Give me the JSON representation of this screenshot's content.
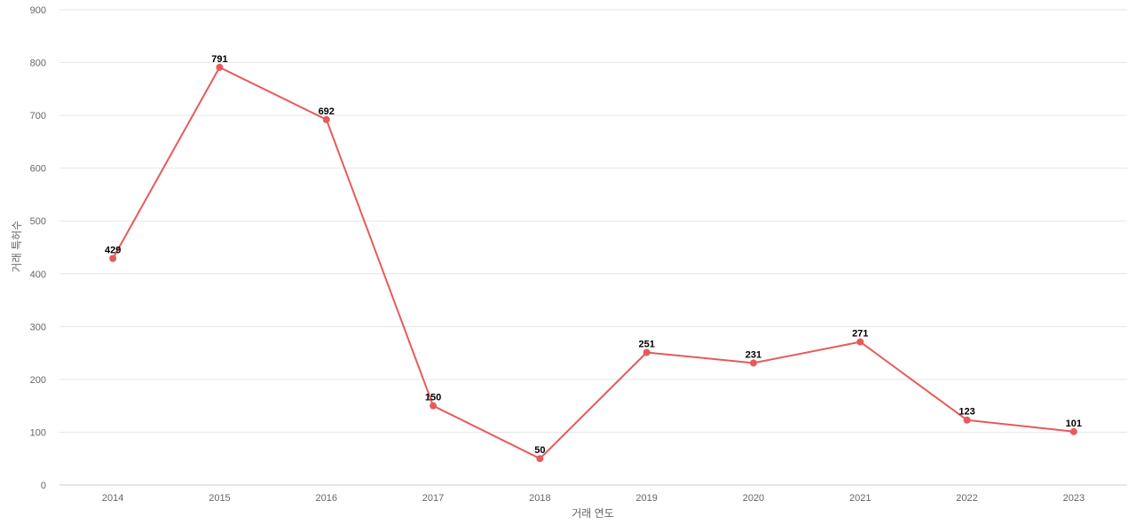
{
  "chart_data": {
    "type": "line",
    "categories": [
      "2014",
      "2015",
      "2016",
      "2017",
      "2018",
      "2019",
      "2020",
      "2021",
      "2022",
      "2023"
    ],
    "series": [
      {
        "values": [
          429,
          791,
          692,
          150,
          50,
          251,
          231,
          271,
          123,
          101
        ],
        "color": "#e85a5a"
      }
    ],
    "xlabel": "거래 연도",
    "ylabel": "거래 특허수",
    "ylim": [
      0,
      900
    ],
    "yticks": [
      0,
      100,
      200,
      300,
      400,
      500,
      600,
      700,
      800,
      900
    ],
    "grid": true,
    "legend": "none"
  }
}
